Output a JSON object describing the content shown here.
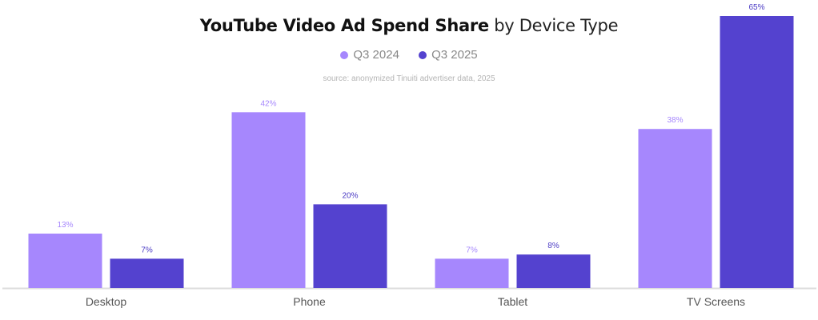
{
  "chart_data": {
    "type": "bar",
    "title_bold": "YouTube Video Ad Spend Share",
    "title_light": "by Device Type",
    "source": "source: anonymized Tinuiti advertiser data, 2025",
    "categories": [
      "Desktop",
      "Phone",
      "Tablet",
      "TV Screens"
    ],
    "series": [
      {
        "name": "Q3 2024",
        "color": "#a687fd",
        "label_color": "#a687fd",
        "values": [
          13,
          42,
          7,
          38
        ]
      },
      {
        "name": "Q3 2025",
        "color": "#5442cf",
        "label_color": "#4a3ac4",
        "values": [
          7,
          20,
          8,
          65
        ]
      }
    ],
    "value_suffix": "%",
    "xlabel": "",
    "ylabel": "",
    "ylim": [
      0,
      65
    ],
    "grid": false,
    "legend_position": "top-center",
    "baseline_color": "#dddddd"
  }
}
